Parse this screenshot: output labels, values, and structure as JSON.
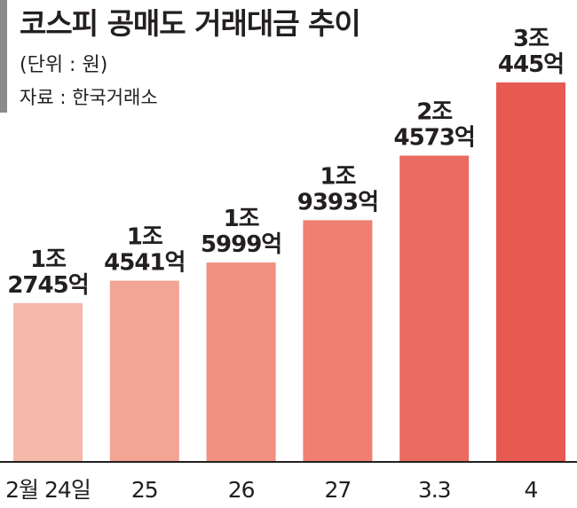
{
  "title": "코스피 공매도 거래대금 추이",
  "unit_note": "(단위 : 원)",
  "source": "자료 : 한국거래소",
  "colors": {
    "bars": [
      "#f4b9a9",
      "#f2a595",
      "#f09181",
      "#ee7f71",
      "#ea6b60",
      "#e65a52"
    ],
    "text": "#231f20",
    "header_bar": "#8a8a8a"
  },
  "chart_data": {
    "type": "bar",
    "title": "코스피 공매도 거래대금 추이",
    "ylabel": "",
    "unit": "원",
    "categories": [
      "2월 24일",
      "25",
      "26",
      "27",
      "3.3",
      "4"
    ],
    "values": [
      1274500000000,
      1454100000000,
      1599900000000,
      1939300000000,
      2457300000000,
      3044500000000
    ],
    "data_labels": [
      [
        "1조",
        "2745억"
      ],
      [
        "1조",
        "4541억"
      ],
      [
        "1조",
        "5999억"
      ],
      [
        "1조",
        "9393억"
      ],
      [
        "2조",
        "4573억"
      ],
      [
        "3조",
        "445억"
      ]
    ],
    "ylim": [
      0,
      3500000000000
    ],
    "grid": false,
    "legend": "none"
  }
}
